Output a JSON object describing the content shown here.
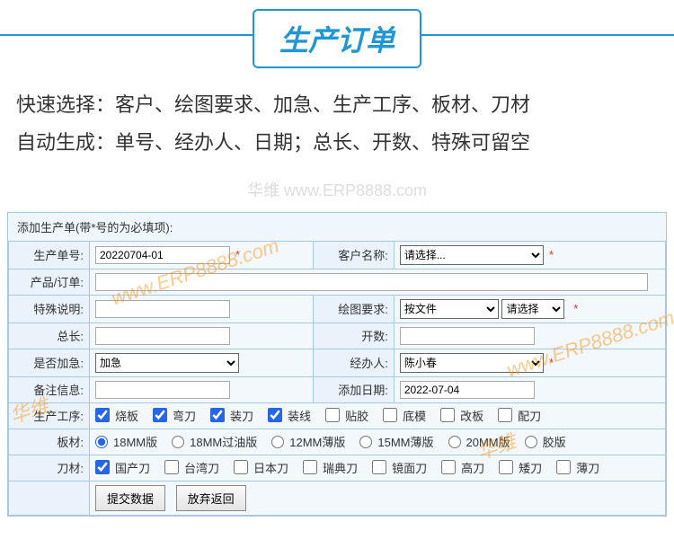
{
  "header": {
    "title": "生产订单"
  },
  "desc": {
    "line1": "快速选择：客户、绘图要求、加急、生产工序、板材、刀材",
    "line2": "自动生成：单号、经办人、日期；总长、开数、特殊可留空"
  },
  "watermark_top": "华维  www.ERP8888.com",
  "form": {
    "header": "添加生产单(带*号的为必填项):",
    "labels": {
      "order_no": "生产单号:",
      "customer": "客户名称:",
      "product": "产品/订单:",
      "special": "特殊说明:",
      "draw_req": "绘图要求:",
      "total_len": "总长:",
      "open_count": "开数:",
      "urgent": "是否加急:",
      "agent": "经办人:",
      "remark": "备注信息:",
      "add_date": "添加日期:",
      "process": "生产工序:",
      "board": "板材:",
      "blade": "刀材:"
    },
    "values": {
      "order_no": "20220704-01",
      "customer_placeholder": "请选择...",
      "draw_file": "按文件",
      "draw_sel": "请选择",
      "urgent_sel": "加急",
      "agent_sel": "陈小春",
      "add_date": "2022-07-04"
    },
    "process_opts": [
      {
        "label": "烧板",
        "checked": true
      },
      {
        "label": "弯刀",
        "checked": true
      },
      {
        "label": "装刀",
        "checked": true
      },
      {
        "label": "装线",
        "checked": true
      },
      {
        "label": "贴胶",
        "checked": false
      },
      {
        "label": "底模",
        "checked": false
      },
      {
        "label": "改板",
        "checked": false
      },
      {
        "label": "配刀",
        "checked": false
      }
    ],
    "board_opts": [
      {
        "label": "18MM版",
        "checked": true
      },
      {
        "label": "18MM过油版",
        "checked": false
      },
      {
        "label": "12MM薄版",
        "checked": false
      },
      {
        "label": "15MM薄版",
        "checked": false
      },
      {
        "label": "20MM版",
        "checked": false
      },
      {
        "label": "胶版",
        "checked": false
      }
    ],
    "blade_opts": [
      {
        "label": "国产刀",
        "checked": true
      },
      {
        "label": "台湾刀",
        "checked": false
      },
      {
        "label": "日本刀",
        "checked": false
      },
      {
        "label": "瑞典刀",
        "checked": false
      },
      {
        "label": "镜面刀",
        "checked": false
      },
      {
        "label": "高刀",
        "checked": false
      },
      {
        "label": "矮刀",
        "checked": false
      },
      {
        "label": "薄刀",
        "checked": false
      }
    ],
    "buttons": {
      "submit": "提交数据",
      "cancel": "放弃返回"
    }
  },
  "watermarks_diag": [
    "www.ERP8888.com",
    "华维",
    "华维",
    "www.ERP8888.com"
  ]
}
